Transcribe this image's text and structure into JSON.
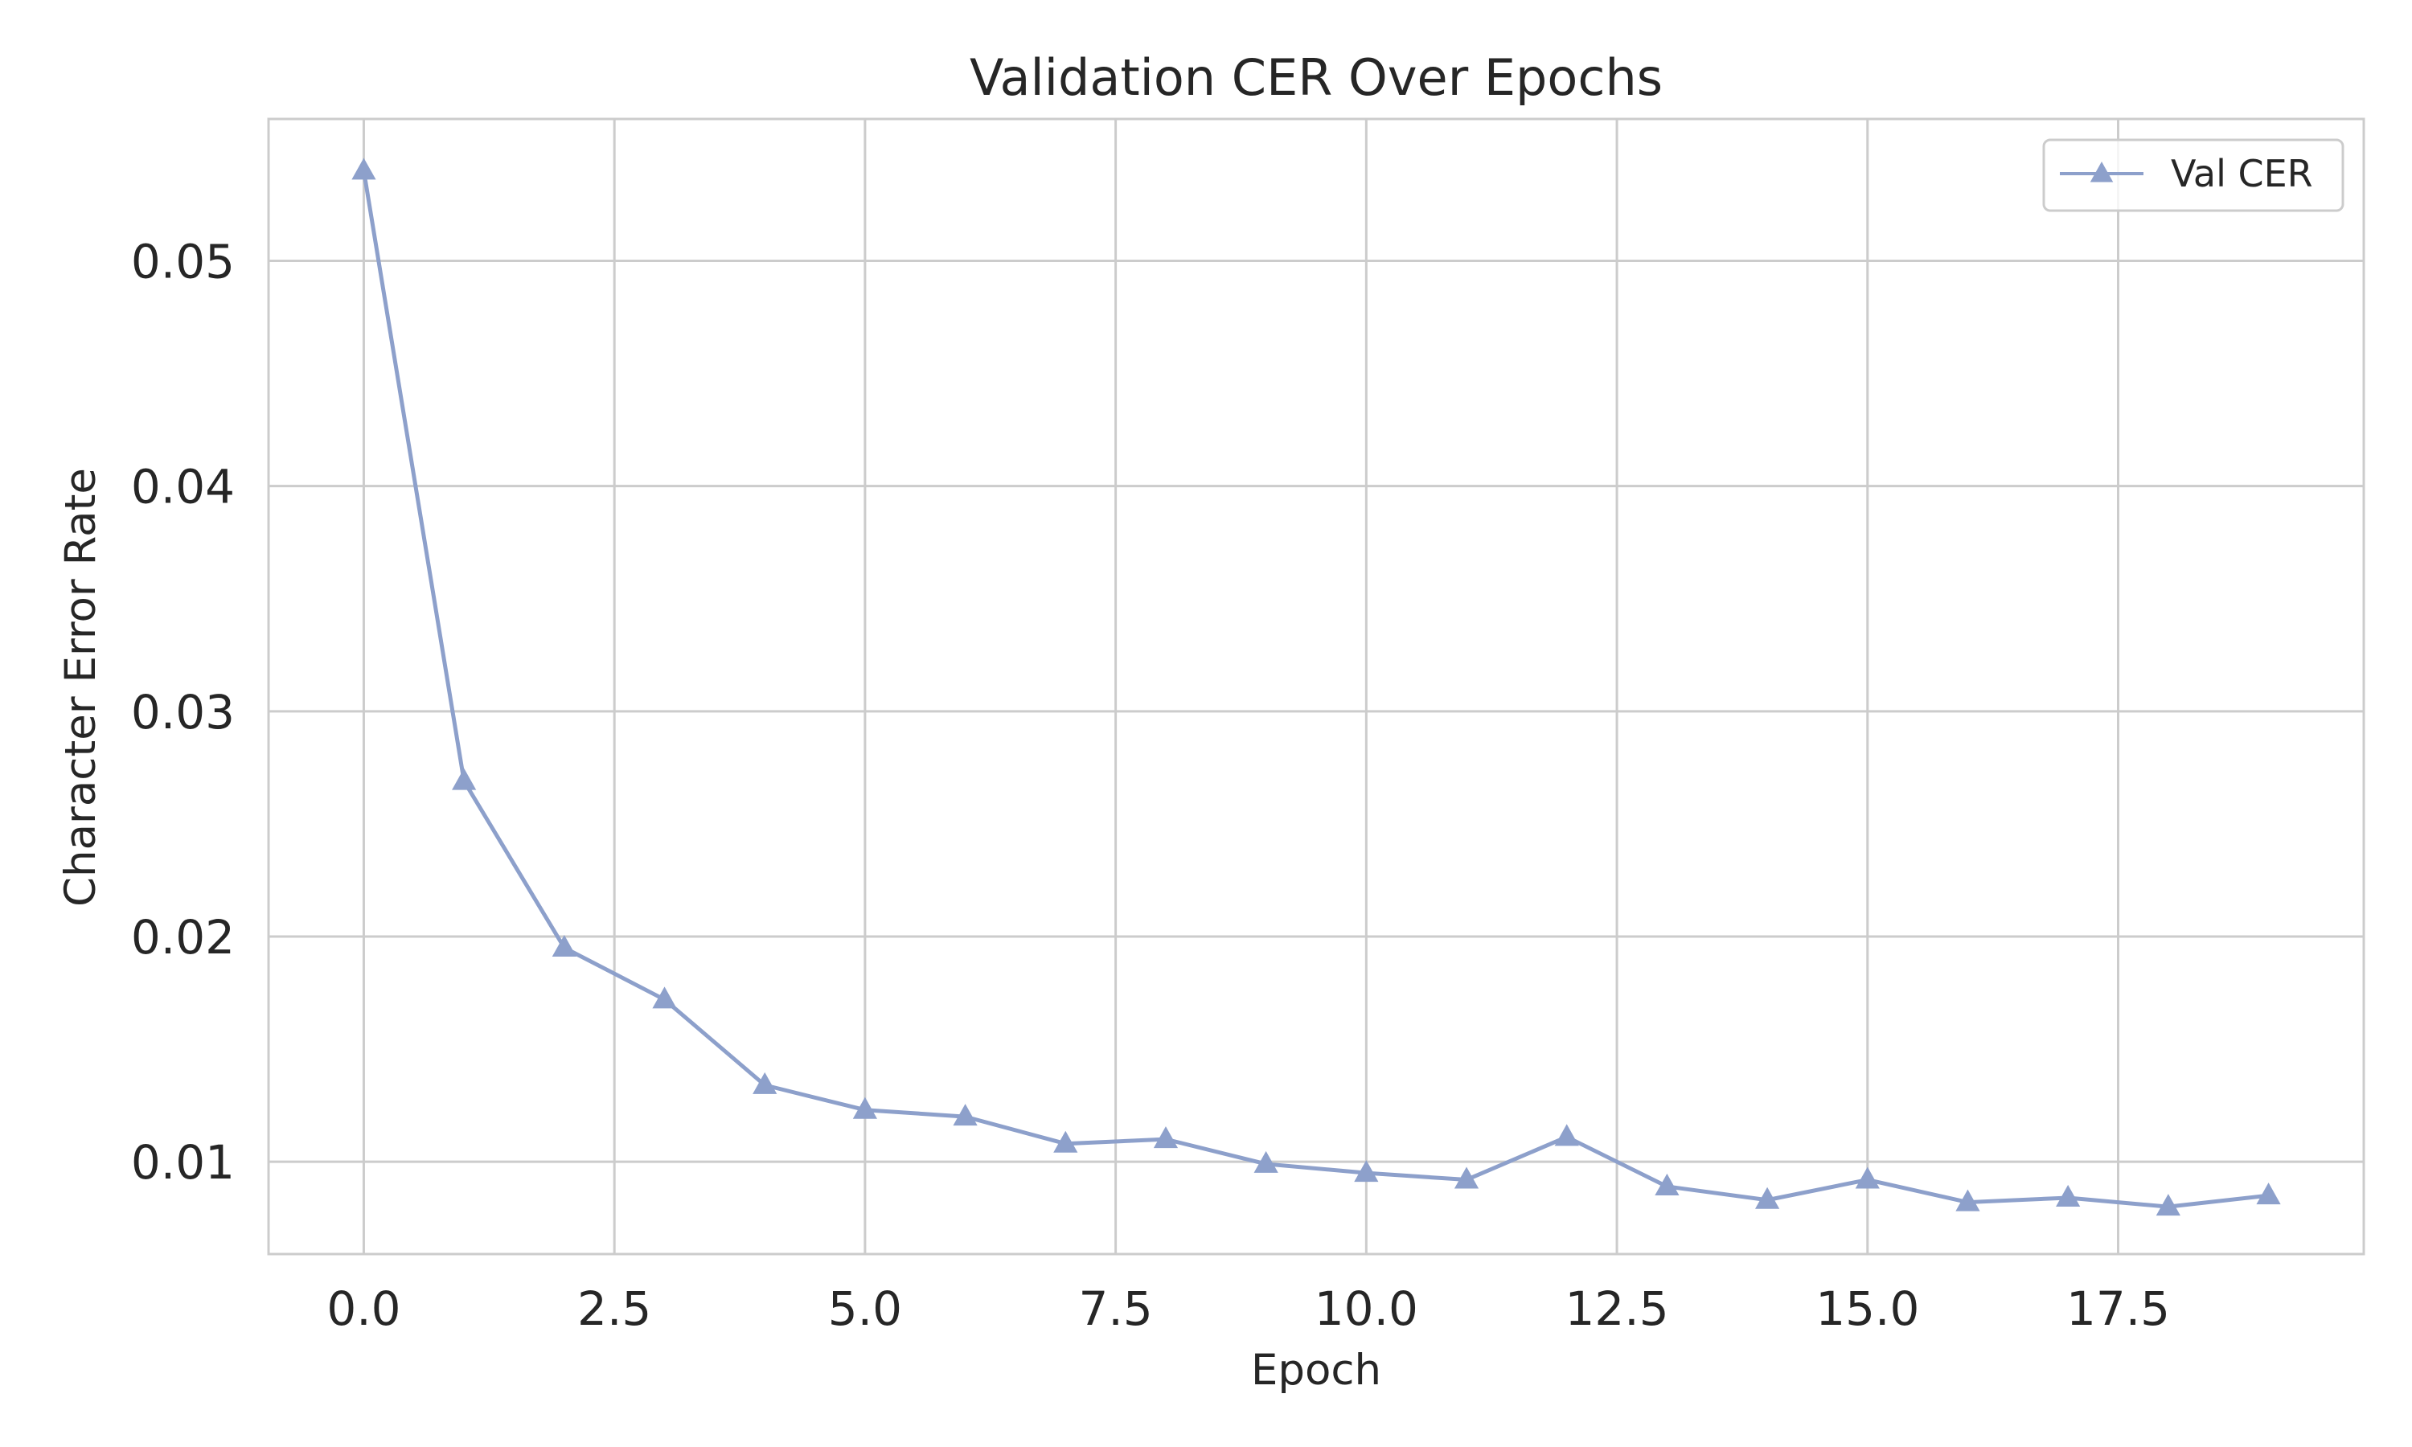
{
  "chart_data": {
    "type": "line",
    "title": "Validation CER Over Epochs",
    "xlabel": "Epoch",
    "ylabel": "Character Error Rate",
    "xlim": [
      -0.95,
      19.95
    ],
    "ylim": [
      0.0059,
      0.0563
    ],
    "x_ticks": [
      0.0,
      2.5,
      5.0,
      7.5,
      10.0,
      12.5,
      15.0,
      17.5
    ],
    "x_tick_labels": [
      "0.0",
      "2.5",
      "5.0",
      "7.5",
      "10.0",
      "12.5",
      "15.0",
      "17.5"
    ],
    "y_ticks": [
      0.01,
      0.02,
      0.03,
      0.04,
      0.05
    ],
    "y_tick_labels": [
      "0.01",
      "0.02",
      "0.03",
      "0.04",
      "0.05"
    ],
    "grid": true,
    "legend_position": "top-right",
    "series": [
      {
        "name": "Val CER",
        "color": "#8da0cb",
        "marker": "triangle-up",
        "x": [
          0,
          1,
          2,
          3,
          4,
          5,
          6,
          7,
          8,
          9,
          10,
          11,
          12,
          13,
          14,
          15,
          16,
          17,
          18,
          19
        ],
        "y": [
          0.054,
          0.0269,
          0.0195,
          0.0172,
          0.0134,
          0.0123,
          0.012,
          0.0108,
          0.011,
          0.0099,
          0.0095,
          0.0092,
          0.0111,
          0.0089,
          0.0083,
          0.0092,
          0.0082,
          0.0084,
          0.008,
          0.0085
        ]
      }
    ]
  }
}
